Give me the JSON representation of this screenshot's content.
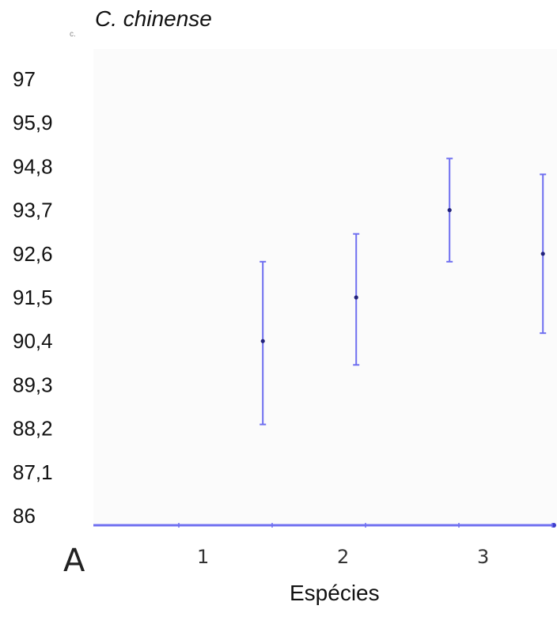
{
  "chart_data": {
    "type": "scatter",
    "title": "C. chinense",
    "corner_mark": "c.",
    "panel_label": "A",
    "xlabel": "Espécies",
    "ylabel": "",
    "ylim": [
      86,
      97
    ],
    "yticks": [
      "86",
      "87,1",
      "88,2",
      "89,3",
      "90,4",
      "91,5",
      "92,6",
      "93,7",
      "94,8",
      "95,9",
      "97"
    ],
    "xticks": [
      "1",
      "2",
      "3"
    ],
    "xlim": [
      0,
      3.5
    ],
    "grid": false,
    "error_bars": true,
    "color": "#6f6ff0",
    "points": [
      {
        "x": 0.95,
        "y": 90.4,
        "low": 88.3,
        "high": 92.4
      },
      {
        "x": 1.45,
        "y": 91.5,
        "low": 89.8,
        "high": 93.1
      },
      {
        "x": 1.95,
        "y": 93.7,
        "low": 92.4,
        "high": 95.0
      },
      {
        "x": 2.45,
        "y": 92.6,
        "low": 90.6,
        "high": 94.6
      }
    ]
  }
}
